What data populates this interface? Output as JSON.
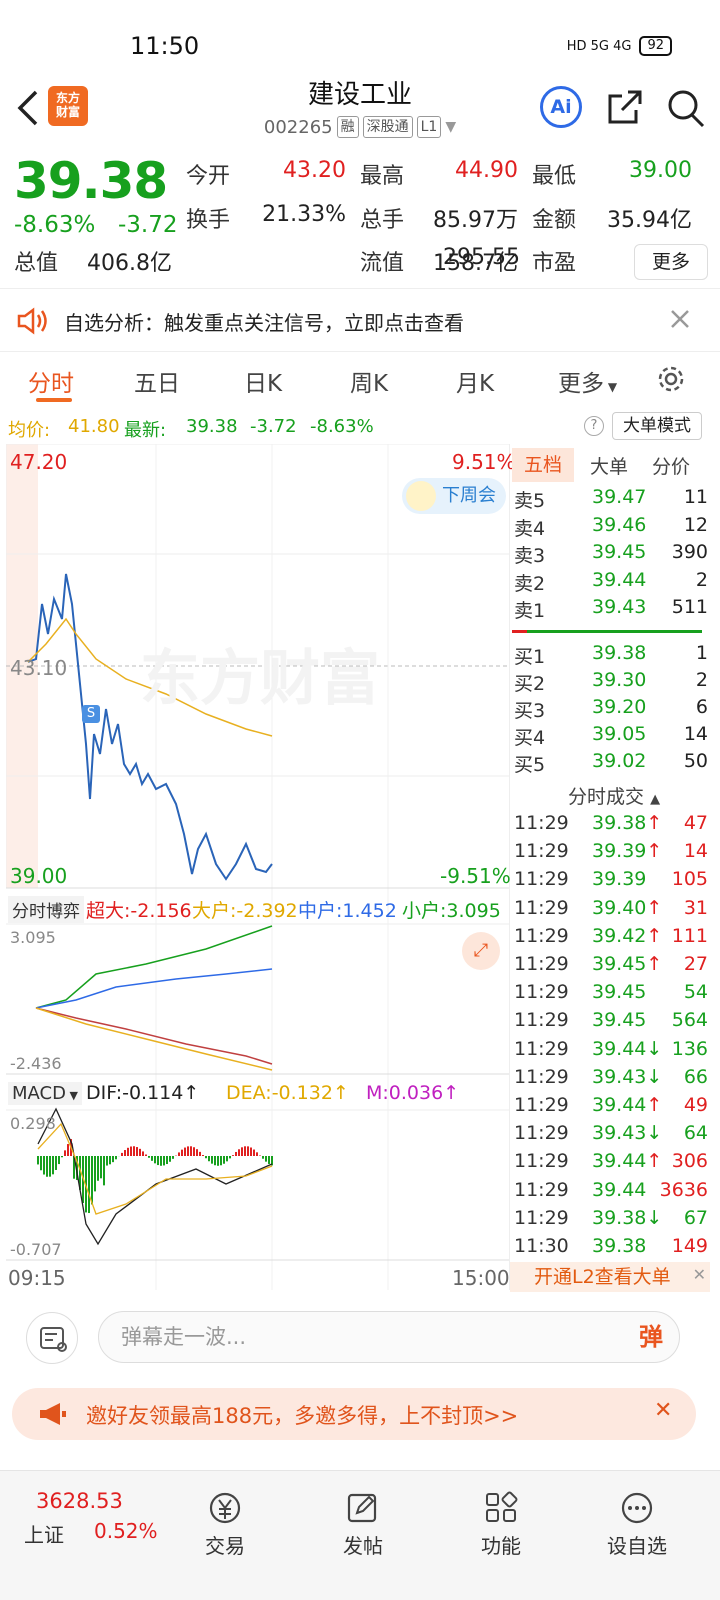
{
  "status_bar": {
    "time": "11:50",
    "network": "HD 5G 4G",
    "battery": "92"
  },
  "header": {
    "title": "建设工业",
    "code": "002265",
    "tags": [
      "融",
      "深股通",
      "L1"
    ]
  },
  "quote": {
    "price": "39.38",
    "change_pct": "-8.63%",
    "change_amt": "-3.72",
    "fields": [
      {
        "label": "今开",
        "value": "43.20",
        "color": "#e02020"
      },
      {
        "label": "最高",
        "value": "44.90",
        "color": "#e02020"
      },
      {
        "label": "最低",
        "value": "39.00",
        "color": "#17a01e"
      },
      {
        "label": "换手",
        "value": "21.33%",
        "color": "#222"
      },
      {
        "label": "总手",
        "value": "85.97万",
        "color": "#222"
      },
      {
        "label": "金额",
        "value": "35.94亿",
        "color": "#222"
      },
      {
        "label": "总值",
        "value": "406.8亿",
        "color": "#222"
      },
      {
        "label": "流值",
        "value": "158.7亿",
        "color": "#222"
      },
      {
        "label": "市盈",
        "value": "295.55",
        "color": "#222"
      }
    ],
    "more_label": "更多"
  },
  "notice": {
    "text": "自选分析：触发重点关注信号，立即点击查看"
  },
  "tabs": [
    "分时",
    "五日",
    "日K",
    "周K",
    "月K",
    "更多"
  ],
  "avg_bar": {
    "avg_label": "均价:",
    "avg": "41.80",
    "latest_label": "最新:",
    "latest": "39.38",
    "amt": "-3.72",
    "pct": "-8.63%",
    "mode_label": "大单模式"
  },
  "chart": {
    "ymax": "47.20",
    "ymid": "43.10",
    "ymin": "39.00",
    "pct_max": "9.51%",
    "pct_min": "-9.51%",
    "badge": "下周会",
    "watermark": "东方财富",
    "time_start": "09:15",
    "time_end": "15:00",
    "flow": {
      "label": "分时博弈",
      "big": "超大:-2.156",
      "large": "大户:-2.392",
      "mid": "中户:1.452",
      "small": "小户:3.095",
      "top": "3.095",
      "bottom": "-2.436"
    },
    "macd": {
      "label": "MACD",
      "dif": "DIF:-0.114",
      "dea": "DEA:-0.132",
      "m": "M:0.036",
      "top": "0.298",
      "bottom": "-0.707"
    }
  },
  "orderbook": {
    "tabs": [
      "五档",
      "大单",
      "分价"
    ],
    "asks": [
      {
        "l": "卖5",
        "p": "39.47",
        "v": "11"
      },
      {
        "l": "卖4",
        "p": "39.46",
        "v": "12"
      },
      {
        "l": "卖3",
        "p": "39.45",
        "v": "390"
      },
      {
        "l": "卖2",
        "p": "39.44",
        "v": "2"
      },
      {
        "l": "卖1",
        "p": "39.43",
        "v": "511"
      }
    ],
    "bids": [
      {
        "l": "买1",
        "p": "39.38",
        "v": "1"
      },
      {
        "l": "买2",
        "p": "39.30",
        "v": "2"
      },
      {
        "l": "买3",
        "p": "39.20",
        "v": "6"
      },
      {
        "l": "买4",
        "p": "39.05",
        "v": "14"
      },
      {
        "l": "买5",
        "p": "39.02",
        "v": "50"
      }
    ],
    "trades_title": "分时成交",
    "trades": [
      {
        "t": "11:29",
        "p": "39.38",
        "a": "↑",
        "v": "47",
        "c": "#e02020"
      },
      {
        "t": "11:29",
        "p": "39.39",
        "a": "↑",
        "v": "14",
        "c": "#e02020"
      },
      {
        "t": "11:29",
        "p": "39.39",
        "a": "",
        "v": "105",
        "c": "#e02020"
      },
      {
        "t": "11:29",
        "p": "39.40",
        "a": "↑",
        "v": "31",
        "c": "#e02020"
      },
      {
        "t": "11:29",
        "p": "39.42",
        "a": "↑",
        "v": "111",
        "c": "#e02020"
      },
      {
        "t": "11:29",
        "p": "39.45",
        "a": "↑",
        "v": "27",
        "c": "#e02020"
      },
      {
        "t": "11:29",
        "p": "39.45",
        "a": "",
        "v": "54",
        "c": "#17a01e"
      },
      {
        "t": "11:29",
        "p": "39.45",
        "a": "",
        "v": "564",
        "c": "#17a01e"
      },
      {
        "t": "11:29",
        "p": "39.44",
        "a": "↓",
        "v": "136",
        "c": "#17a01e"
      },
      {
        "t": "11:29",
        "p": "39.43",
        "a": "↓",
        "v": "66",
        "c": "#17a01e"
      },
      {
        "t": "11:29",
        "p": "39.44",
        "a": "↑",
        "v": "49",
        "c": "#e02020"
      },
      {
        "t": "11:29",
        "p": "39.43",
        "a": "↓",
        "v": "64",
        "c": "#17a01e"
      },
      {
        "t": "11:29",
        "p": "39.44",
        "a": "↑",
        "v": "306",
        "c": "#e02020"
      },
      {
        "t": "11:29",
        "p": "39.44",
        "a": "",
        "v": "3636",
        "c": "#e02020"
      },
      {
        "t": "11:29",
        "p": "39.38",
        "a": "↓",
        "v": "67",
        "c": "#17a01e"
      },
      {
        "t": "11:30",
        "p": "39.38",
        "a": "",
        "v": "149",
        "c": "#e02020"
      }
    ],
    "l2_label": "开通L2查看大单"
  },
  "bottom": {
    "danmu_placeholder": "弹幕走一波...",
    "danmu_btn": "弹",
    "promo": "邀好友领最高188元，多邀多得，上不封顶>>",
    "index_value": "3628.53",
    "index_name": "上证",
    "index_pct": "0.52%",
    "nav": [
      "交易",
      "发帖",
      "功能",
      "设自选"
    ]
  }
}
